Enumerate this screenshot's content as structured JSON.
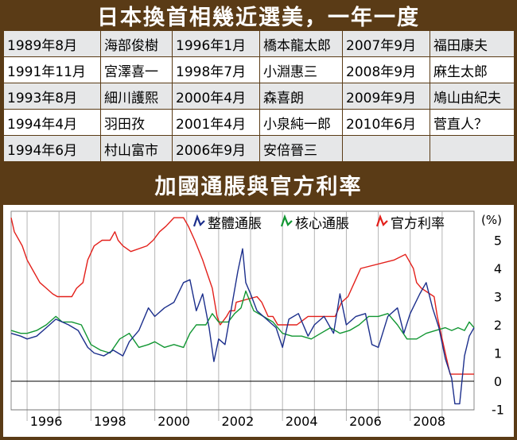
{
  "header": {
    "title": "日本換首相幾近選美，一年一度"
  },
  "pm_table": {
    "rows": [
      [
        [
          "1989年8月",
          "海部俊樹"
        ],
        [
          "1996年1月",
          "橋本龍太郎"
        ],
        [
          "2007年9月",
          "福田康夫"
        ]
      ],
      [
        [
          "1991年11月",
          "宮澤喜一"
        ],
        [
          "1998年7月",
          "小淵惠三"
        ],
        [
          "2008年9月",
          "麻生太郎"
        ]
      ],
      [
        [
          "1993年8月",
          "細川護熙"
        ],
        [
          "2000年4月",
          "森喜朗"
        ],
        [
          "2009年9月",
          "鳩山由紀夫"
        ]
      ],
      [
        [
          "1994年4月",
          "羽田孜"
        ],
        [
          "2001年4月",
          "小泉純一郎"
        ],
        [
          "2010年6月",
          "菅直人？"
        ]
      ],
      [
        [
          "1994年6月",
          "村山富市"
        ],
        [
          "2006年9月",
          "安倍晉三"
        ],
        [
          "",
          ""
        ]
      ]
    ]
  },
  "chart_section": {
    "title": "加國通脹與官方利率"
  },
  "chart_data": {
    "type": "line",
    "title": "加國通脹與官方利率",
    "ylabel": "(%)",
    "ylim": [
      -1,
      6
    ],
    "xlim": [
      1995.5,
      2010.0
    ],
    "x_ticks": [
      "1996",
      "1998",
      "2000",
      "2002",
      "2004",
      "2006",
      "2008"
    ],
    "y_ticks": [
      "5",
      "4",
      "3",
      "2",
      "1",
      "0",
      "-1"
    ],
    "colors": {
      "headline": "#1c2f8c",
      "core": "#119632",
      "policy": "#e3201b"
    },
    "series": [
      {
        "name": "整體通脹",
        "key": "headline",
        "x": [
          1995.5,
          1995.8,
          1996.0,
          1996.3,
          1996.6,
          1996.9,
          1997.1,
          1997.3,
          1997.6,
          1997.9,
          1998.1,
          1998.4,
          1998.7,
          1999.0,
          1999.2,
          1999.5,
          1999.8,
          2000.0,
          2000.3,
          2000.6,
          2000.9,
          2001.1,
          2001.3,
          2001.5,
          2001.7,
          2001.85,
          2002.0,
          2002.2,
          2002.4,
          2002.6,
          2002.75,
          2002.85,
          2003.0,
          2003.2,
          2003.5,
          2003.8,
          2004.0,
          2004.2,
          2004.5,
          2004.8,
          2005.0,
          2005.3,
          2005.6,
          2005.8,
          2006.0,
          2006.3,
          2006.6,
          2006.8,
          2007.0,
          2007.3,
          2007.6,
          2007.8,
          2008.0,
          2008.3,
          2008.5,
          2008.7,
          2008.9,
          2009.1,
          2009.3,
          2009.4,
          2009.55,
          2009.7,
          2009.85,
          2010.0
        ],
        "values": [
          1.7,
          1.6,
          1.5,
          1.6,
          1.9,
          2.2,
          2.1,
          2.0,
          1.8,
          1.2,
          1.0,
          0.9,
          1.1,
          0.9,
          1.4,
          1.8,
          2.6,
          2.3,
          2.6,
          2.8,
          3.5,
          3.6,
          2.5,
          3.1,
          1.9,
          0.7,
          1.5,
          1.3,
          2.6,
          3.9,
          4.7,
          3.5,
          3.1,
          2.5,
          2.2,
          1.9,
          1.2,
          2.2,
          2.4,
          1.6,
          2.0,
          2.3,
          1.7,
          3.1,
          2.0,
          2.3,
          2.4,
          1.3,
          1.2,
          2.3,
          2.6,
          1.7,
          2.4,
          3.1,
          3.5,
          2.6,
          1.9,
          0.8,
          0.1,
          -0.8,
          -0.8,
          0.9,
          1.6,
          1.9
        ]
      },
      {
        "name": "核心通脹",
        "key": "core",
        "x": [
          1995.5,
          1995.8,
          1996.0,
          1996.3,
          1996.6,
          1996.9,
          1997.1,
          1997.4,
          1997.7,
          1998.0,
          1998.3,
          1998.6,
          1998.9,
          1999.2,
          1999.5,
          1999.8,
          2000.0,
          2000.3,
          2000.6,
          2000.9,
          2001.1,
          2001.3,
          2001.6,
          2001.8,
          2002.0,
          2002.3,
          2002.5,
          2002.7,
          2002.85,
          2003.1,
          2003.4,
          2003.7,
          2004.0,
          2004.3,
          2004.6,
          2004.9,
          2005.2,
          2005.5,
          2005.8,
          2006.1,
          2006.4,
          2006.7,
          2007.0,
          2007.3,
          2007.6,
          2007.9,
          2008.2,
          2008.5,
          2008.8,
          2009.1,
          2009.3,
          2009.5,
          2009.7,
          2009.85,
          2010.0
        ],
        "values": [
          1.8,
          1.7,
          1.7,
          1.8,
          2.0,
          2.3,
          2.1,
          2.1,
          2.0,
          1.3,
          1.1,
          1.0,
          1.5,
          1.7,
          1.2,
          1.3,
          1.4,
          1.2,
          1.3,
          1.2,
          1.7,
          2.0,
          2.0,
          2.4,
          2.1,
          2.1,
          2.4,
          2.6,
          3.2,
          2.5,
          2.3,
          2.1,
          1.7,
          1.6,
          1.6,
          1.5,
          1.7,
          1.9,
          1.7,
          1.8,
          2.0,
          2.3,
          2.3,
          2.4,
          2.0,
          1.5,
          1.5,
          1.7,
          1.8,
          1.9,
          1.8,
          1.9,
          1.8,
          2.1,
          1.9
        ]
      },
      {
        "name": "官方利率",
        "key": "policy",
        "x": [
          1995.5,
          1995.6,
          1995.85,
          1996.0,
          1996.2,
          1996.4,
          1996.6,
          1996.8,
          1996.95,
          1997.4,
          1997.55,
          1997.75,
          1997.9,
          1998.1,
          1998.35,
          1998.6,
          1998.75,
          1998.85,
          1999.0,
          1999.25,
          1999.75,
          1999.95,
          2000.15,
          2000.35,
          2000.6,
          2000.9,
          2001.05,
          2001.25,
          2001.5,
          2001.65,
          2001.8,
          2001.95,
          2002.05,
          2002.25,
          2002.35,
          2002.5,
          2002.55,
          2003.2,
          2003.35,
          2003.55,
          2003.7,
          2003.85,
          2004.2,
          2004.45,
          2004.8,
          2005.65,
          2005.85,
          2006.05,
          2006.25,
          2006.45,
          2007.5,
          2007.85,
          2007.95,
          2008.1,
          2008.2,
          2008.35,
          2008.75,
          2008.85,
          2009.0,
          2009.1,
          2009.25,
          2010.0
        ],
        "values": [
          5.8,
          5.3,
          4.8,
          4.3,
          3.9,
          3.5,
          3.3,
          3.1,
          3.0,
          3.0,
          3.3,
          3.5,
          4.3,
          4.8,
          5.0,
          5.0,
          5.3,
          5.0,
          4.8,
          4.6,
          4.8,
          5.0,
          5.3,
          5.5,
          5.8,
          5.8,
          5.5,
          5.0,
          4.3,
          3.8,
          3.3,
          2.3,
          2.0,
          2.3,
          2.5,
          2.5,
          2.8,
          3.0,
          2.8,
          2.3,
          2.3,
          2.0,
          2.0,
          2.0,
          2.3,
          2.3,
          2.8,
          3.0,
          3.5,
          4.0,
          4.3,
          4.5,
          4.3,
          4.0,
          3.5,
          3.3,
          3.0,
          2.3,
          1.5,
          1.0,
          0.25,
          0.25
        ]
      }
    ]
  }
}
